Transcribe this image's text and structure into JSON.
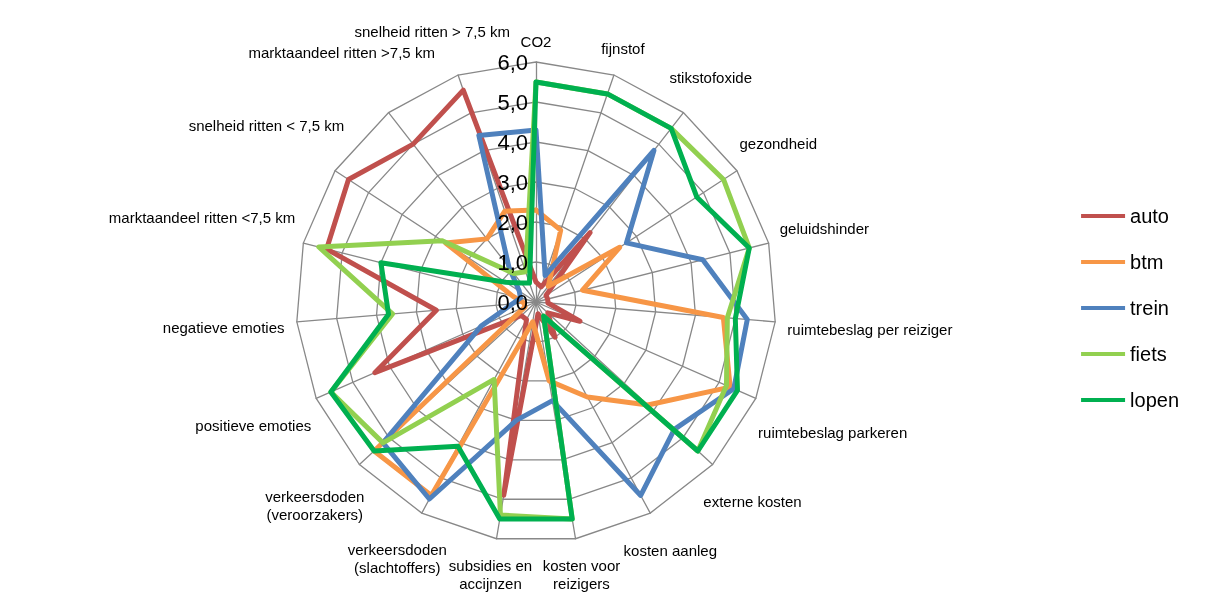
{
  "chart_data": {
    "type": "radar",
    "categories": [
      "CO2",
      "fijnstof",
      "stikstofoxide",
      "gezondheid",
      "geluidshinder",
      "ruimtebeslag per reiziger",
      "ruimtebeslag parkeren",
      "externe kosten",
      "kosten aanleg",
      "kosten voor reizigers",
      "subsidies en accijnzen",
      "verkeersdoden (slachtoffers)",
      "verkeersdoden (veroorzakers)",
      "positieve emoties",
      "negatieve emoties",
      "marktaandeel ritten <7,5 km",
      "snelheid ritten < 7,5 km",
      "marktaandeel ritten >7,5 km",
      "snelheid ritten > 7,5 km"
    ],
    "series": [
      {
        "name": "auto",
        "color": "#c0504d",
        "values": [
          0.5,
          0.4,
          2.2,
          0.3,
          0.3,
          0.3,
          1.2,
          0.4,
          1.0,
          0.3,
          4.9,
          0.5,
          0.5,
          4.4,
          2.5,
          5.4,
          5.6,
          5.0,
          5.6
        ]
      },
      {
        "name": "btm",
        "color": "#f79646",
        "values": [
          2.3,
          1.9,
          0.5,
          2.5,
          1.2,
          4.7,
          5.3,
          3.8,
          2.7,
          2.0,
          0.5,
          5.5,
          5.5,
          0.3,
          0.3,
          0.6,
          2.7,
          2.0,
          2.4
        ]
      },
      {
        "name": "trein",
        "color": "#4f81bd",
        "values": [
          4.3,
          0.7,
          4.8,
          2.7,
          4.3,
          5.3,
          5.4,
          4.7,
          5.5,
          2.5,
          3.0,
          5.6,
          5.2,
          1.5,
          0.6,
          0.4,
          0.5,
          1.1,
          4.4
        ]
      },
      {
        "name": "fiets",
        "color": "#92d050",
        "values": [
          5.5,
          5.5,
          5.5,
          5.6,
          5.5,
          4.8,
          5.2,
          5.5,
          0.4,
          5.5,
          5.4,
          2.2,
          5.2,
          5.6,
          3.6,
          5.6,
          2.8,
          0.9,
          0.8
        ]
      },
      {
        "name": "lopen",
        "color": "#00b050",
        "values": [
          5.5,
          5.5,
          5.5,
          4.8,
          5.5,
          5.0,
          5.5,
          5.5,
          0.4,
          5.5,
          5.5,
          4.1,
          5.5,
          5.6,
          3.7,
          4.0,
          0.9,
          0.6,
          0.5
        ]
      }
    ],
    "ylim": [
      0,
      6
    ],
    "yticks": [
      {
        "value": 0,
        "label": "0,0"
      },
      {
        "value": 1,
        "label": "1,0"
      },
      {
        "value": 2,
        "label": "2,0"
      },
      {
        "value": 3,
        "label": "3,0"
      },
      {
        "value": 4,
        "label": "4,0"
      },
      {
        "value": 5,
        "label": "5,0"
      },
      {
        "value": 6,
        "label": "6,0"
      }
    ],
    "legend": "right",
    "marker": "none",
    "line_style": "solid"
  }
}
